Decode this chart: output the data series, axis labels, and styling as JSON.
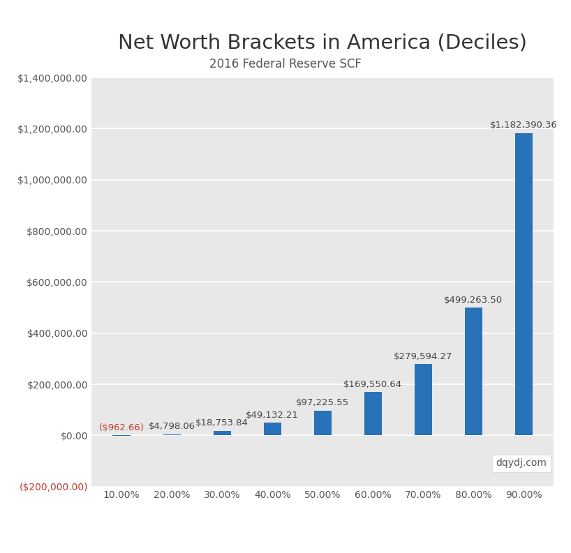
{
  "title": "Net Worth Brackets in America (Deciles)",
  "subtitle": "2016 Federal Reserve SCF",
  "categories": [
    "10.00%",
    "20.00%",
    "30.00%",
    "40.00%",
    "50.00%",
    "60.00%",
    "70.00%",
    "80.00%",
    "90.00%"
  ],
  "values": [
    -962.66,
    4798.06,
    18753.84,
    49132.21,
    97225.55,
    169550.64,
    279594.27,
    499263.5,
    1182390.36
  ],
  "labels": [
    "($962.66)",
    "$4,798.06",
    "$18,753.84",
    "$49,132.21",
    "$97,225.55",
    "$169,550.64",
    "$279,594.27",
    "$499,263.50",
    "$1,182,390.36"
  ],
  "bar_color": "#2872b8",
  "neg_label_color": "#c0392b",
  "pos_label_color": "#444444",
  "plot_bg_color": "#e8e8e8",
  "outer_bg_color": "#ffffff",
  "ylim_min": -200000,
  "ylim_max": 1400000,
  "yticks": [
    -200000,
    0,
    200000,
    400000,
    600000,
    800000,
    1000000,
    1200000,
    1400000
  ],
  "watermark": "dqydj.com",
  "title_fontsize": 21,
  "subtitle_fontsize": 12,
  "tick_fontsize": 10,
  "label_fontsize": 9.5,
  "watermark_fontsize": 10
}
